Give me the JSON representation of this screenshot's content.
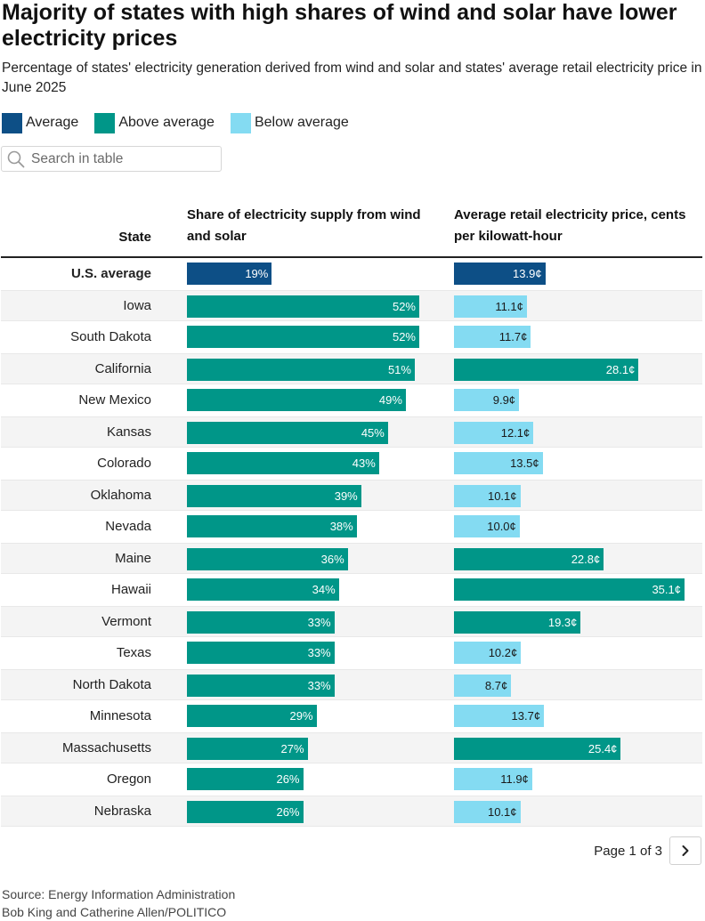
{
  "title": "Majority of states with high shares of wind and solar have lower electricity prices",
  "subtitle": "Percentage of states' electricity generation derived from wind and solar and states' average retail electricity price in June 2025",
  "legend": [
    {
      "label": "Average",
      "color": "#0d4f86"
    },
    {
      "label": "Above average",
      "color": "#009688"
    },
    {
      "label": "Below average",
      "color": "#84dbf2"
    }
  ],
  "search": {
    "placeholder": "Search in table"
  },
  "headers": {
    "state": "State",
    "share": "Share of electricity supply from wind and solar",
    "price": "Average retail electricity price, cents per kilowatt-hour"
  },
  "chart_data": {
    "type": "table",
    "columns": [
      "State",
      "Share of electricity supply from wind and solar",
      "Average retail electricity price, cents per kilowatt-hour"
    ],
    "share_max": 52,
    "price_max": 35.1,
    "rows": [
      {
        "state": "U.S. average",
        "share": 19,
        "share_label": "19%",
        "share_status": "Average",
        "price": 13.9,
        "price_label": "13.9¢",
        "price_status": "Average"
      },
      {
        "state": "Iowa",
        "share": 52,
        "share_label": "52%",
        "share_status": "Above average",
        "price": 11.1,
        "price_label": "11.1¢",
        "price_status": "Below average"
      },
      {
        "state": "South Dakota",
        "share": 52,
        "share_label": "52%",
        "share_status": "Above average",
        "price": 11.7,
        "price_label": "11.7¢",
        "price_status": "Below average"
      },
      {
        "state": "California",
        "share": 51,
        "share_label": "51%",
        "share_status": "Above average",
        "price": 28.1,
        "price_label": "28.1¢",
        "price_status": "Above average"
      },
      {
        "state": "New Mexico",
        "share": 49,
        "share_label": "49%",
        "share_status": "Above average",
        "price": 9.9,
        "price_label": "9.9¢",
        "price_status": "Below average"
      },
      {
        "state": "Kansas",
        "share": 45,
        "share_label": "45%",
        "share_status": "Above average",
        "price": 12.1,
        "price_label": "12.1¢",
        "price_status": "Below average"
      },
      {
        "state": "Colorado",
        "share": 43,
        "share_label": "43%",
        "share_status": "Above average",
        "price": 13.5,
        "price_label": "13.5¢",
        "price_status": "Below average"
      },
      {
        "state": "Oklahoma",
        "share": 39,
        "share_label": "39%",
        "share_status": "Above average",
        "price": 10.1,
        "price_label": "10.1¢",
        "price_status": "Below average"
      },
      {
        "state": "Nevada",
        "share": 38,
        "share_label": "38%",
        "share_status": "Above average",
        "price": 10.0,
        "price_label": "10.0¢",
        "price_status": "Below average"
      },
      {
        "state": "Maine",
        "share": 36,
        "share_label": "36%",
        "share_status": "Above average",
        "price": 22.8,
        "price_label": "22.8¢",
        "price_status": "Above average"
      },
      {
        "state": "Hawaii",
        "share": 34,
        "share_label": "34%",
        "share_status": "Above average",
        "price": 35.1,
        "price_label": "35.1¢",
        "price_status": "Above average"
      },
      {
        "state": "Vermont",
        "share": 33,
        "share_label": "33%",
        "share_status": "Above average",
        "price": 19.3,
        "price_label": "19.3¢",
        "price_status": "Above average"
      },
      {
        "state": "Texas",
        "share": 33,
        "share_label": "33%",
        "share_status": "Above average",
        "price": 10.2,
        "price_label": "10.2¢",
        "price_status": "Below average"
      },
      {
        "state": "North Dakota",
        "share": 33,
        "share_label": "33%",
        "share_status": "Above average",
        "price": 8.7,
        "price_label": "8.7¢",
        "price_status": "Below average"
      },
      {
        "state": "Minnesota",
        "share": 29,
        "share_label": "29%",
        "share_status": "Above average",
        "price": 13.7,
        "price_label": "13.7¢",
        "price_status": "Below average"
      },
      {
        "state": "Massachusetts",
        "share": 27,
        "share_label": "27%",
        "share_status": "Above average",
        "price": 25.4,
        "price_label": "25.4¢",
        "price_status": "Above average"
      },
      {
        "state": "Oregon",
        "share": 26,
        "share_label": "26%",
        "share_status": "Above average",
        "price": 11.9,
        "price_label": "11.9¢",
        "price_status": "Below average"
      },
      {
        "state": "Nebraska",
        "share": 26,
        "share_label": "26%",
        "share_status": "Above average",
        "price": 10.1,
        "price_label": "10.1¢",
        "price_status": "Below average"
      }
    ]
  },
  "pagination": {
    "label": "Page 1 of 3",
    "next_icon": "chevron-right-icon"
  },
  "footer": {
    "source": "Source: Energy Information Administration",
    "credit": "Bob King and Catherine Allen/POLITICO"
  }
}
